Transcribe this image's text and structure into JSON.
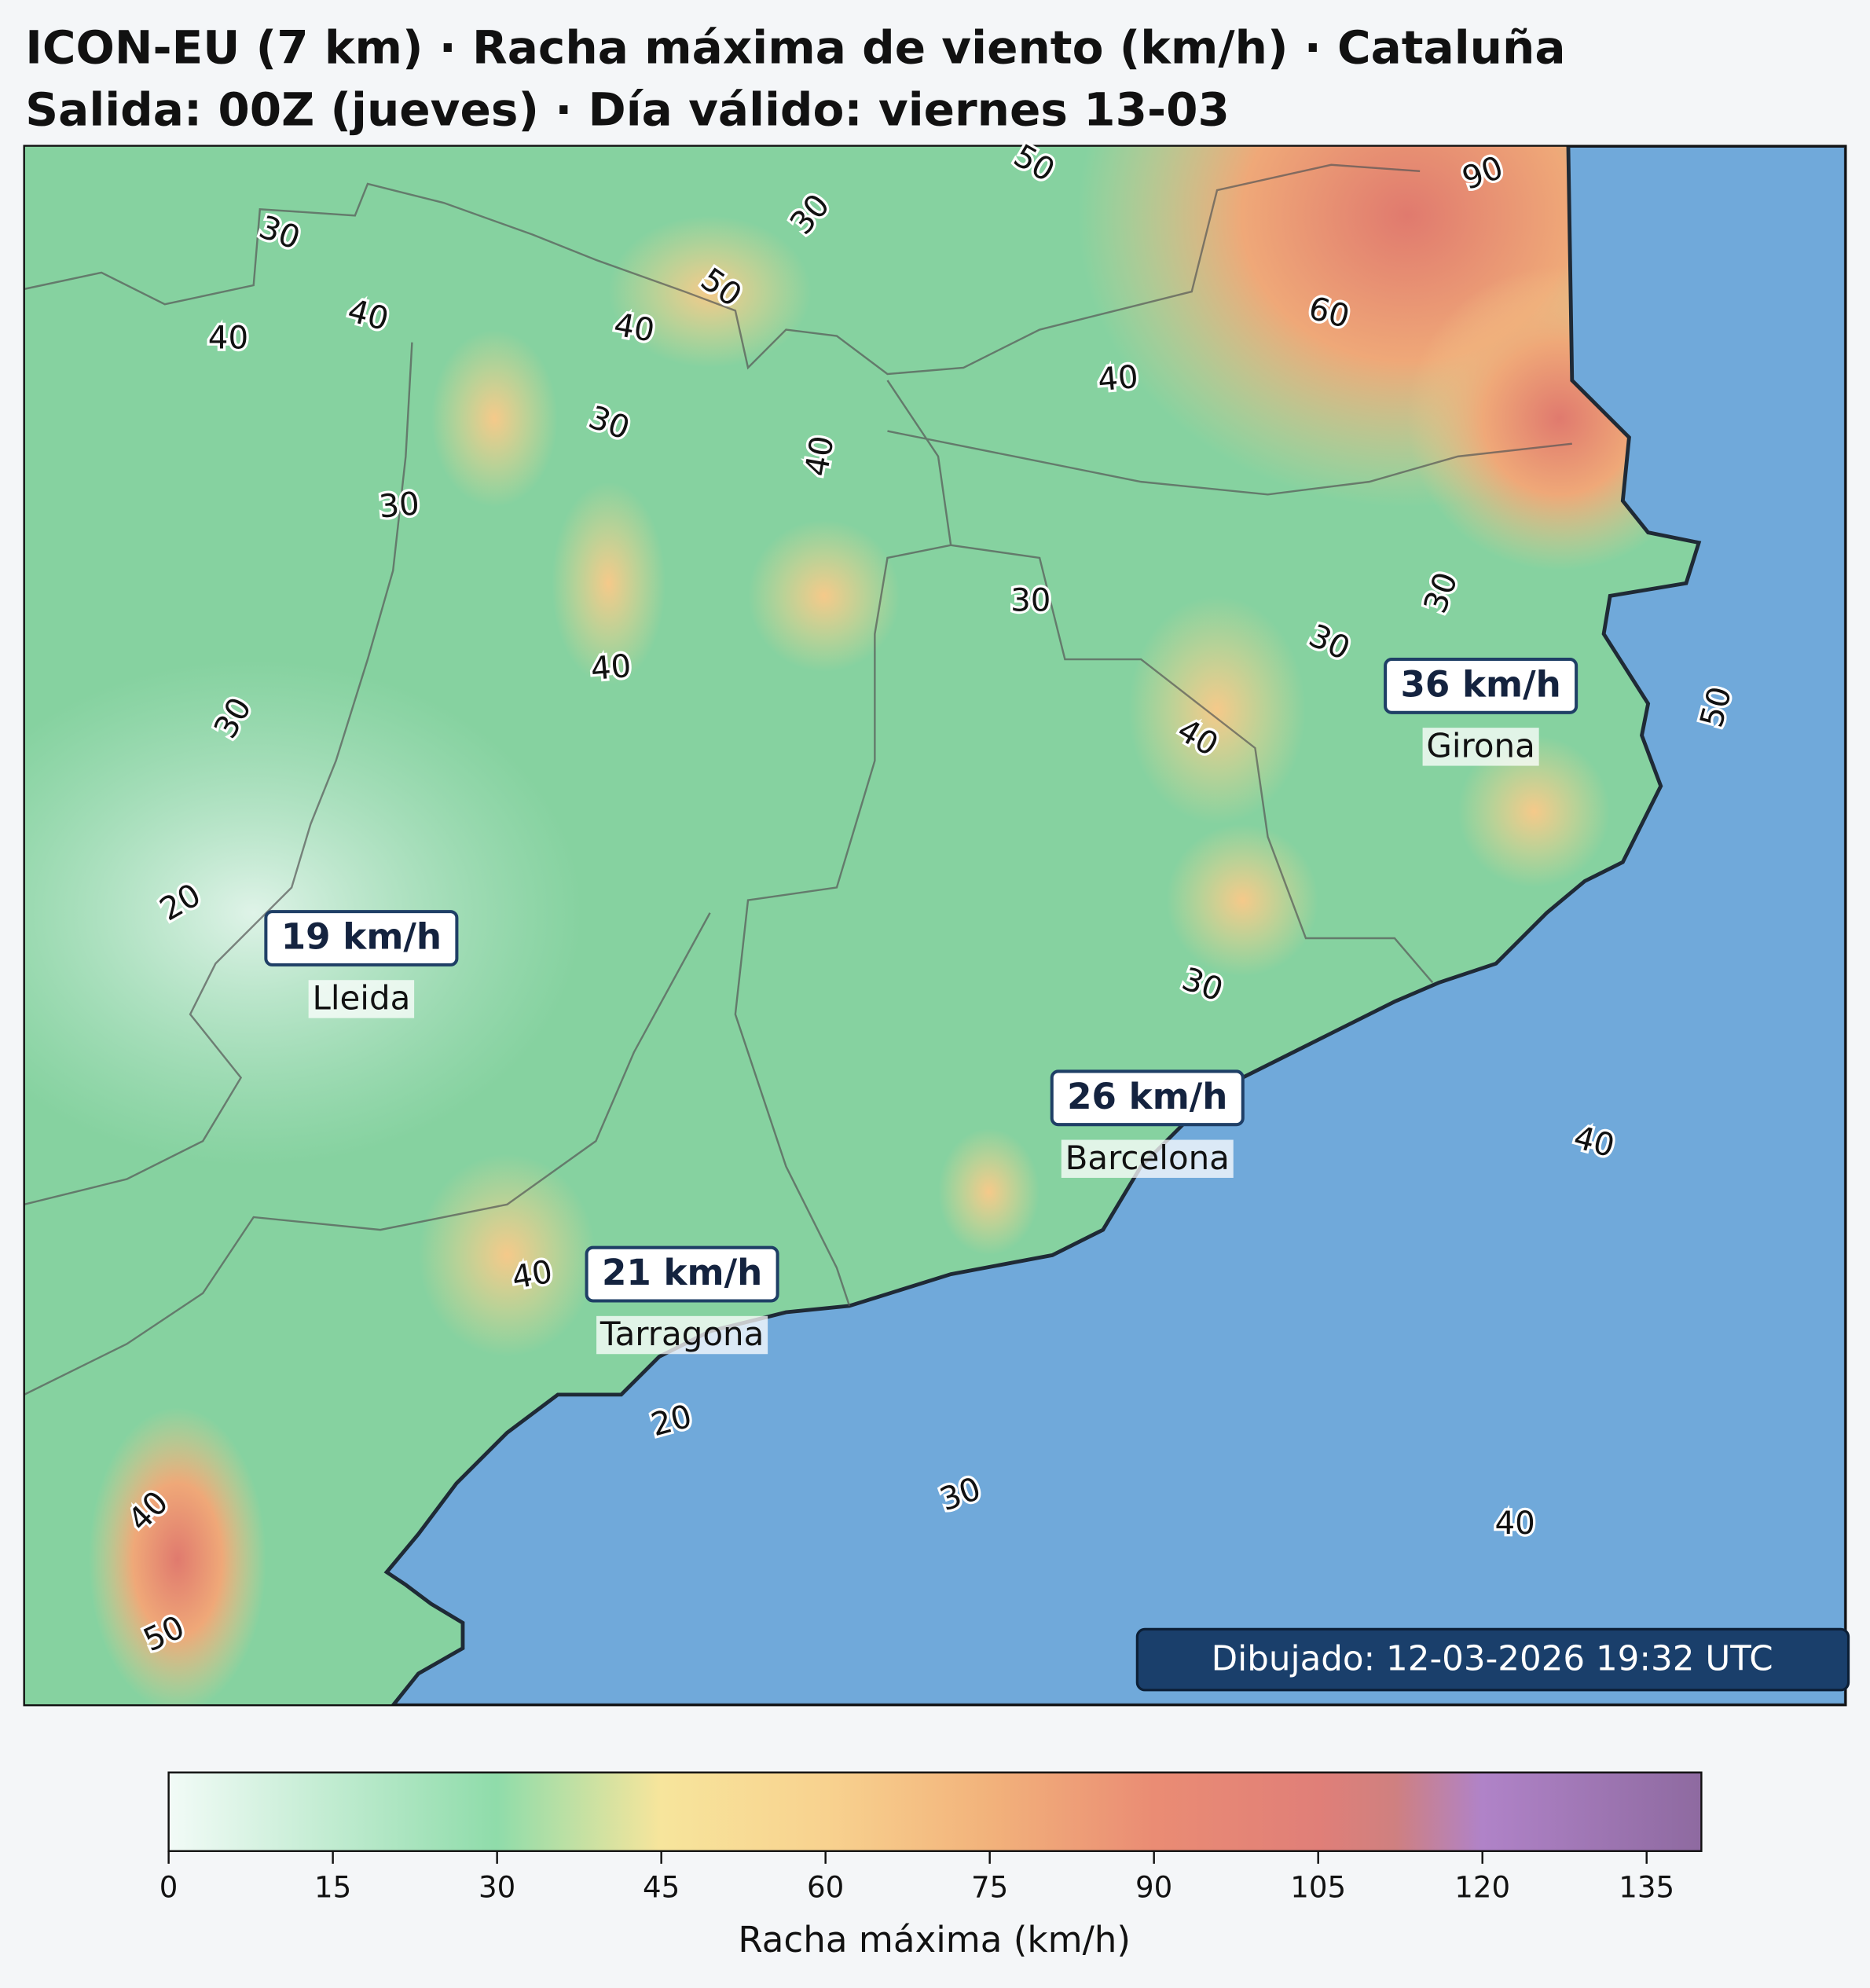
{
  "header": {
    "title_line1": "ICON-EU (7 km) · Racha máxima de viento (km/h) · Cataluña",
    "title_line2": "Salida: 00Z (jueves) · Día válido: viernes 13-03"
  },
  "cities": [
    {
      "value": "36 km/h",
      "name": "Girona"
    },
    {
      "value": "19 km/h",
      "name": "Lleida"
    },
    {
      "value": "26 km/h",
      "name": "Barcelona"
    },
    {
      "value": "21 km/h",
      "name": "Tarragona"
    }
  ],
  "contour_labels": [
    "30",
    "40",
    "40",
    "40",
    "50",
    "30",
    "50",
    "90",
    "60",
    "40",
    "30",
    "40",
    "30",
    "30",
    "40",
    "30",
    "30",
    "40",
    "30",
    "50",
    "20",
    "30",
    "40",
    "40",
    "20",
    "30",
    "40",
    "40",
    "50"
  ],
  "timestamp": "Dibujado: 12-03-2026 19:32 UTC",
  "colorbar": {
    "label": "Racha máxima (km/h)",
    "range": [
      0,
      140
    ],
    "ticks": [
      0,
      15,
      30,
      45,
      60,
      75,
      90,
      105,
      120,
      135
    ]
  }
}
